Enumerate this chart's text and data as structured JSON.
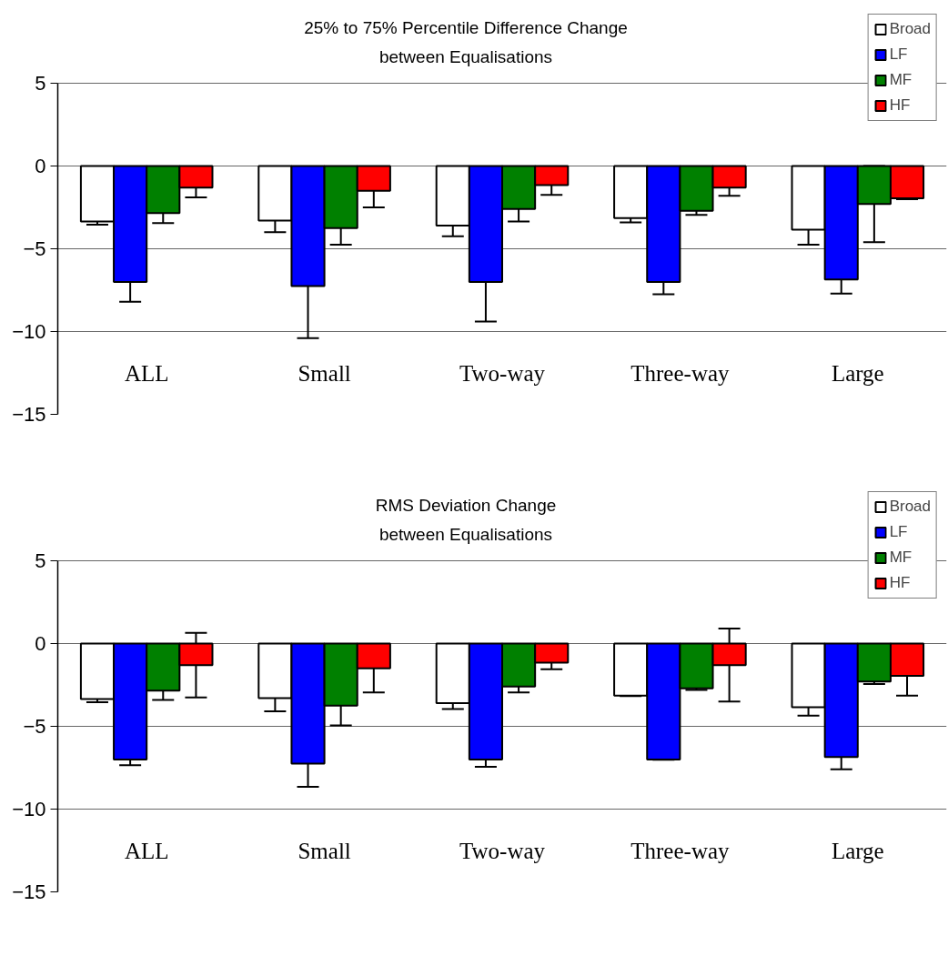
{
  "chart_data": [
    {
      "type": "bar",
      "title": "25% to 75% Percentile Difference Change\nbetween Equalisations",
      "categories": [
        "ALL",
        "Small",
        "Two-way",
        "Three-way",
        "Large"
      ],
      "ylim": [
        -15,
        5
      ],
      "yticks": [
        -15,
        -10,
        -5,
        0,
        5
      ],
      "grid": "y",
      "legend": "top right",
      "series": [
        {
          "name": "Broad",
          "color": "#ffffff",
          "values": [
            -3.35,
            -3.3,
            -3.6,
            -3.15,
            -3.85
          ],
          "errors": [
            0.2,
            0.7,
            0.65,
            0.25,
            0.9
          ]
        },
        {
          "name": "LF",
          "color": "#0000ff",
          "values": [
            -7.0,
            -7.25,
            -7.0,
            -7.0,
            -6.85
          ],
          "errors": [
            1.2,
            3.15,
            2.4,
            0.75,
            0.85
          ]
        },
        {
          "name": "MF",
          "color": "#008000",
          "values": [
            -2.85,
            -3.75,
            -2.6,
            -2.7,
            -2.3
          ],
          "errors": [
            0.6,
            1.0,
            0.75,
            0.25,
            2.3
          ]
        },
        {
          "name": "HF",
          "color": "#ff0000",
          "values": [
            -1.3,
            -1.5,
            -1.15,
            -1.3,
            -1.95
          ],
          "errors": [
            0.6,
            1.0,
            0.6,
            0.5,
            0.05
          ]
        }
      ]
    },
    {
      "type": "bar",
      "title": "RMS Deviation Change\nbetween Equalisations",
      "categories": [
        "ALL",
        "Small",
        "Two-way",
        "Three-way",
        "Large"
      ],
      "ylim": [
        -15,
        5
      ],
      "yticks": [
        -15,
        -10,
        -5,
        0,
        5
      ],
      "grid": "y",
      "legend": "top right",
      "series": [
        {
          "name": "Broad",
          "color": "#ffffff",
          "values": [
            -3.35,
            -3.3,
            -3.6,
            -3.15,
            -3.85
          ],
          "errors": [
            0.2,
            0.8,
            0.35,
            0.02,
            0.5
          ]
        },
        {
          "name": "LF",
          "color": "#0000ff",
          "values": [
            -7.0,
            -7.25,
            -7.0,
            -7.0,
            -6.85
          ],
          "errors": [
            0.35,
            1.4,
            0.45,
            0.02,
            0.75
          ]
        },
        {
          "name": "MF",
          "color": "#008000",
          "values": [
            -2.85,
            -3.75,
            -2.6,
            -2.7,
            -2.3
          ],
          "errors": [
            0.55,
            1.2,
            0.35,
            0.1,
            0.15
          ]
        },
        {
          "name": "HF",
          "color": "#ff0000",
          "values": [
            -1.3,
            -1.5,
            -1.15,
            -1.3,
            -1.95
          ],
          "errors": [
            1.95,
            1.45,
            0.4,
            2.2,
            1.2
          ]
        }
      ]
    }
  ]
}
